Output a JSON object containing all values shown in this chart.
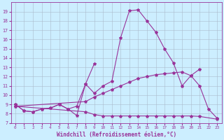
{
  "xlabel": "Windchill (Refroidissement éolien,°C)",
  "bg_color": "#cceeff",
  "line_color": "#993399",
  "grid_color": "#aabbcc",
  "ylim": [
    7,
    20
  ],
  "xlim": [
    -0.5,
    23.5
  ],
  "yticks": [
    7,
    8,
    9,
    10,
    11,
    12,
    13,
    14,
    15,
    16,
    17,
    18,
    19
  ],
  "xticks": [
    0,
    1,
    2,
    3,
    4,
    5,
    6,
    7,
    8,
    9,
    10,
    11,
    12,
    13,
    14,
    15,
    16,
    17,
    18,
    19,
    20,
    21,
    22,
    23
  ],
  "line1_x": [
    0,
    1,
    2,
    3,
    4,
    5,
    6,
    7,
    8,
    9,
    10,
    11,
    12,
    13,
    14,
    15,
    16,
    17,
    18,
    19,
    20,
    21,
    22,
    23
  ],
  "line1_y": [
    9.0,
    8.3,
    8.2,
    8.5,
    8.6,
    9.0,
    8.5,
    8.8,
    11.2,
    10.2,
    11.0,
    11.5,
    16.2,
    19.1,
    19.2,
    18.0,
    16.8,
    15.0,
    13.5,
    11.0,
    12.1,
    11.0,
    8.5,
    7.5
  ],
  "line2_x": [
    0,
    1,
    2,
    3,
    4,
    5,
    6,
    7,
    8,
    9
  ],
  "line2_y": [
    9.0,
    8.3,
    8.2,
    8.5,
    8.6,
    9.0,
    8.5,
    7.8,
    11.2,
    13.4
  ],
  "line3_x": [
    0,
    8,
    9,
    10,
    11,
    12,
    13,
    14,
    15,
    16,
    17,
    18,
    19,
    20,
    21
  ],
  "line3_y": [
    8.8,
    9.3,
    9.8,
    10.2,
    10.6,
    11.0,
    11.4,
    11.8,
    12.0,
    12.2,
    12.3,
    12.4,
    12.5,
    12.1,
    12.8
  ],
  "line4_x": [
    0,
    8,
    9,
    10,
    11,
    12,
    13,
    14,
    15,
    16,
    17,
    18,
    19,
    20,
    21,
    23
  ],
  "line4_y": [
    8.8,
    8.2,
    7.9,
    7.75,
    7.75,
    7.75,
    7.75,
    7.75,
    7.75,
    7.75,
    7.75,
    7.75,
    7.75,
    7.75,
    7.7,
    7.4
  ]
}
